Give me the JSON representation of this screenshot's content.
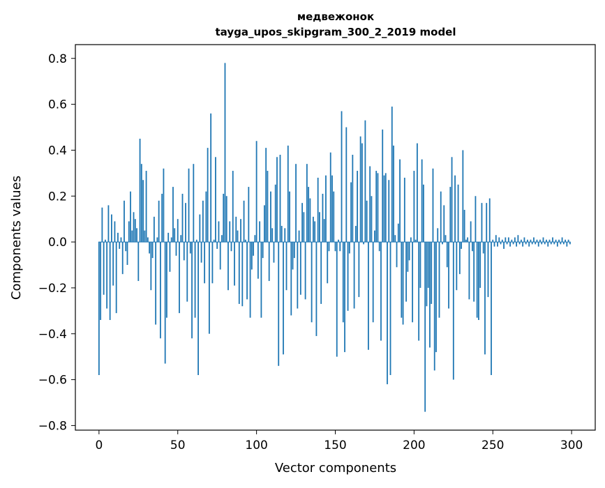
{
  "chart_data": {
    "type": "bar",
    "title": "медвежонок",
    "subtitle": "tayga_upos_skipgram_300_2_2019 model",
    "xlabel": "Vector components",
    "ylabel": "Components values",
    "xlim": [
      -15,
      315
    ],
    "ylim": [
      -0.82,
      0.86
    ],
    "xticks": [
      0,
      50,
      100,
      150,
      200,
      250,
      300
    ],
    "yticks": [
      -0.8,
      -0.6,
      -0.4,
      -0.2,
      0.0,
      0.2,
      0.4,
      0.6,
      0.8
    ],
    "ytick_labels": [
      "−0.8",
      "−0.6",
      "−0.4",
      "−0.2",
      "0.0",
      "0.2",
      "0.4",
      "0.6",
      "0.8"
    ],
    "grid": false,
    "legend": "none",
    "bar_color": "#1f77b4",
    "x": [
      0,
      1,
      2,
      3,
      4,
      5,
      6,
      7,
      8,
      9,
      10,
      11,
      12,
      13,
      14,
      15,
      16,
      17,
      18,
      19,
      20,
      21,
      22,
      23,
      24,
      25,
      26,
      27,
      28,
      29,
      30,
      31,
      32,
      33,
      34,
      35,
      36,
      37,
      38,
      39,
      40,
      41,
      42,
      43,
      44,
      45,
      46,
      47,
      48,
      49,
      50,
      51,
      52,
      53,
      54,
      55,
      56,
      57,
      58,
      59,
      60,
      61,
      62,
      63,
      64,
      65,
      66,
      67,
      68,
      69,
      70,
      71,
      72,
      73,
      74,
      75,
      76,
      77,
      78,
      79,
      80,
      81,
      82,
      83,
      84,
      85,
      86,
      87,
      88,
      89,
      90,
      91,
      92,
      93,
      94,
      95,
      96,
      97,
      98,
      99,
      100,
      101,
      102,
      103,
      104,
      105,
      106,
      107,
      108,
      109,
      110,
      111,
      112,
      113,
      114,
      115,
      116,
      117,
      118,
      119,
      120,
      121,
      122,
      123,
      124,
      125,
      126,
      127,
      128,
      129,
      130,
      131,
      132,
      133,
      134,
      135,
      136,
      137,
      138,
      139,
      140,
      141,
      142,
      143,
      144,
      145,
      146,
      147,
      148,
      149,
      150,
      151,
      152,
      153,
      154,
      155,
      156,
      157,
      158,
      159,
      160,
      161,
      162,
      163,
      164,
      165,
      166,
      167,
      168,
      169,
      170,
      171,
      172,
      173,
      174,
      175,
      176,
      177,
      178,
      179,
      180,
      181,
      182,
      183,
      184,
      185,
      186,
      187,
      188,
      189,
      190,
      191,
      192,
      193,
      194,
      195,
      196,
      197,
      198,
      199,
      200,
      201,
      202,
      203,
      204,
      205,
      206,
      207,
      208,
      209,
      210,
      211,
      212,
      213,
      214,
      215,
      216,
      217,
      218,
      219,
      220,
      221,
      222,
      223,
      224,
      225,
      226,
      227,
      228,
      229,
      230,
      231,
      232,
      233,
      234,
      235,
      236,
      237,
      238,
      239,
      240,
      241,
      242,
      243,
      244,
      245,
      246,
      247,
      248,
      249,
      250,
      251,
      252,
      253,
      254,
      255,
      256,
      257,
      258,
      259,
      260,
      261,
      262,
      263,
      264,
      265,
      266,
      267,
      268,
      269,
      270,
      271,
      272,
      273,
      274,
      275,
      276,
      277,
      278,
      279,
      280,
      281,
      282,
      283,
      284,
      285,
      286,
      287,
      288,
      289,
      290,
      291,
      292,
      293,
      294,
      295,
      296,
      297,
      298,
      299
    ],
    "values": [
      -0.58,
      -0.34,
      0.15,
      -0.23,
      0.01,
      -0.29,
      0.16,
      -0.34,
      0.12,
      -0.19,
      0.09,
      -0.31,
      0.04,
      -0.03,
      0.02,
      -0.14,
      0.18,
      -0.04,
      -0.1,
      0.09,
      0.22,
      0.05,
      0.13,
      0.1,
      0.06,
      -0.17,
      0.45,
      0.34,
      0.27,
      0.05,
      0.31,
      0.02,
      -0.05,
      -0.21,
      -0.07,
      0.11,
      -0.36,
      0.02,
      0.18,
      -0.42,
      0.21,
      0.32,
      -0.53,
      -0.33,
      0.04,
      -0.13,
      0.02,
      0.24,
      0.06,
      -0.06,
      0.1,
      -0.31,
      0.03,
      0.21,
      -0.08,
      0.17,
      -0.26,
      0.32,
      -0.05,
      -0.42,
      0.34,
      -0.33,
      0.01,
      -0.58,
      0.12,
      -0.09,
      0.18,
      -0.18,
      0.22,
      0.41,
      -0.4,
      0.56,
      -0.18,
      0.01,
      0.37,
      -0.03,
      0.09,
      -0.12,
      0.03,
      0.21,
      0.78,
      0.2,
      -0.21,
      0.09,
      -0.04,
      0.31,
      -0.19,
      0.11,
      0.05,
      -0.27,
      0.1,
      -0.28,
      0.18,
      0.01,
      -0.25,
      0.24,
      -0.33,
      -0.12,
      -0.06,
      0.03,
      0.44,
      -0.16,
      0.09,
      -0.33,
      -0.07,
      0.16,
      0.41,
      0.31,
      -0.17,
      0.22,
      0.06,
      -0.09,
      0.25,
      0.37,
      -0.54,
      0.38,
      0.07,
      -0.49,
      0.06,
      -0.21,
      0.42,
      0.22,
      -0.32,
      -0.12,
      -0.07,
      0.34,
      -0.29,
      0.05,
      -0.23,
      0.17,
      0.13,
      -0.25,
      0.34,
      0.24,
      0.19,
      -0.35,
      0.11,
      0.09,
      -0.41,
      0.28,
      0.13,
      -0.27,
      0.21,
      0.1,
      0.29,
      -0.18,
      -0.04,
      0.39,
      0.29,
      0.22,
      -0.04,
      -0.5,
      0.01,
      -0.04,
      0.57,
      -0.35,
      -0.48,
      0.5,
      -0.3,
      -0.05,
      0.26,
      0.38,
      -0.29,
      0.07,
      0.31,
      -0.24,
      0.46,
      0.43,
      -0.01,
      0.53,
      0.18,
      -0.47,
      0.33,
      0.2,
      -0.35,
      0.05,
      0.31,
      0.3,
      -0.04,
      -0.43,
      0.49,
      0.29,
      0.3,
      -0.62,
      0.27,
      -0.58,
      0.59,
      0.42,
      0.03,
      -0.11,
      0.08,
      0.36,
      -0.33,
      -0.36,
      0.28,
      -0.26,
      -0.13,
      -0.08,
      0.02,
      -0.35,
      0.31,
      0.01,
      0.43,
      -0.43,
      -0.2,
      0.36,
      0.25,
      -0.74,
      -0.28,
      -0.2,
      -0.46,
      -0.27,
      0.32,
      -0.56,
      -0.48,
      0.06,
      -0.33,
      0.22,
      -0.01,
      0.16,
      0.03,
      -0.11,
      -0.29,
      0.24,
      0.37,
      -0.6,
      0.29,
      -0.21,
      0.25,
      -0.14,
      -0.03,
      0.4,
      0.14,
      0.01,
      0.02,
      -0.25,
      0.09,
      -0.04,
      -0.26,
      0.2,
      -0.33,
      -0.34,
      -0.2,
      0.17,
      -0.05,
      -0.49,
      0.17,
      -0.24,
      0.19,
      -0.58,
      0.01,
      -0.02,
      0.03,
      -0.02,
      0.02,
      -0.01,
      0.01,
      -0.03,
      0.02,
      -0.01,
      0.02,
      -0.02,
      0.01,
      -0.01,
      0.02,
      -0.02,
      0.03,
      -0.01,
      0.01,
      -0.02,
      0.02,
      -0.01,
      0.01,
      -0.02,
      0.01,
      -0.01,
      0.02,
      -0.01,
      0.01,
      -0.02,
      0.01,
      -0.01,
      0.02,
      -0.01,
      0.01,
      -0.02,
      0.01,
      -0.01,
      0.02,
      -0.01,
      0.01,
      -0.02,
      0.01,
      -0.01,
      0.02,
      -0.01,
      0.01,
      -0.02,
      0.01,
      -0.01
    ]
  }
}
